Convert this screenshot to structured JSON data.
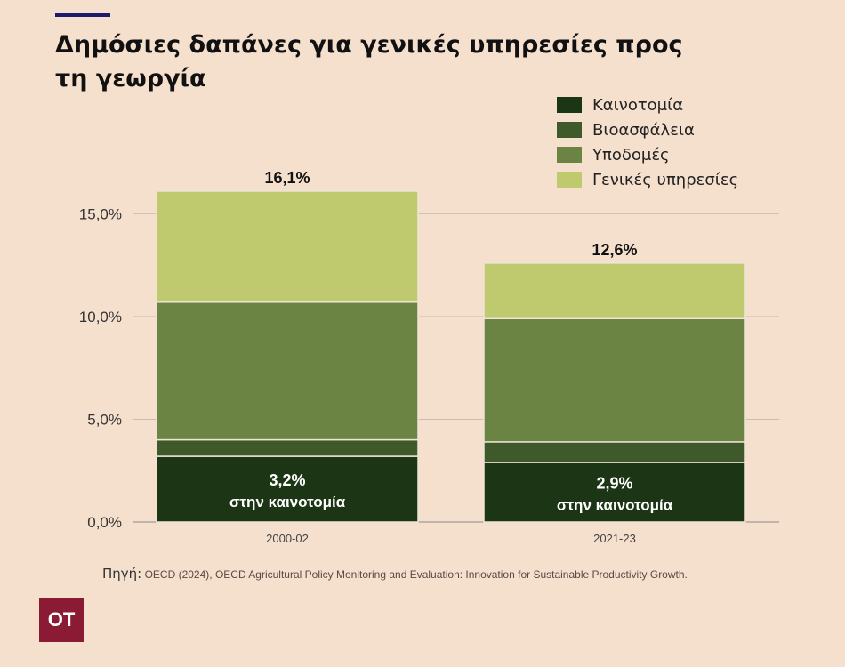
{
  "title": "Δημόσιες δαπάνες για γενικές υπηρεσίες προς τη γεωργία",
  "legend": [
    {
      "label": "Καινοτομία",
      "color": "#1b3515"
    },
    {
      "label": "Βιοασφάλεια",
      "color": "#3f5a2a"
    },
    {
      "label": "Υποδομές",
      "color": "#6c8443"
    },
    {
      "label": "Γενικές υπηρεσίες",
      "color": "#bfc96e"
    }
  ],
  "chart_data": {
    "type": "bar",
    "stacked": true,
    "categories": [
      "2000-02",
      "2021-23"
    ],
    "series": [
      {
        "name": "Καινοτομία",
        "values": [
          3.2,
          2.9
        ]
      },
      {
        "name": "Βιοασφάλεια",
        "values": [
          0.8,
          1.0
        ]
      },
      {
        "name": "Υποδομές",
        "values": [
          6.7,
          6.0
        ]
      },
      {
        "name": "Γενικές υπηρεσίες",
        "values": [
          5.4,
          2.7
        ]
      }
    ],
    "totals": [
      "16,1%",
      "12,6%"
    ],
    "innovation_labels": [
      {
        "value": "3,2%",
        "text": "στην καινοτομία"
      },
      {
        "value": "2,9%",
        "text": "στην καινοτομία"
      }
    ],
    "yticks": [
      {
        "value": 0,
        "label": "0,0%"
      },
      {
        "value": 5,
        "label": "5,0%"
      },
      {
        "value": 10,
        "label": "10,0%"
      },
      {
        "value": 15,
        "label": "15,0%"
      }
    ],
    "ylim": [
      0,
      16.1
    ],
    "grid": true,
    "legend_position": "top-right"
  },
  "source": {
    "label": "Πηγή:",
    "text": "OECD (2024), OECD Agricultural Policy Monitoring and Evaluation: Innovation for Sustainable Productivity Growth."
  },
  "logo": "OT"
}
